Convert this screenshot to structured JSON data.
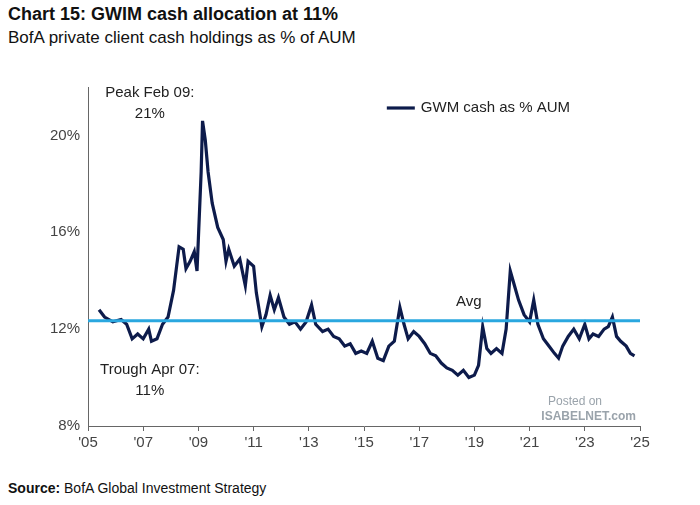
{
  "chart_data": {
    "type": "line",
    "title": "Chart 15: GWIM cash allocation at 11%",
    "subtitle": "BofA private client cash holdings as % of AUM",
    "source": "Source: BofA Global Investment Strategy",
    "x": [
      2005.4,
      2005.6,
      2005.9,
      2006.2,
      2006.4,
      2006.6,
      2006.8,
      2007.0,
      2007.2,
      2007.3,
      2007.5,
      2007.7,
      2007.9,
      2008.1,
      2008.3,
      2008.45,
      2008.55,
      2008.7,
      2008.85,
      2008.95,
      2009.1,
      2009.15,
      2009.25,
      2009.35,
      2009.5,
      2009.7,
      2009.9,
      2010.0,
      2010.1,
      2010.3,
      2010.5,
      2010.7,
      2010.8,
      2011.0,
      2011.1,
      2011.3,
      2011.45,
      2011.6,
      2011.75,
      2011.9,
      2012.1,
      2012.3,
      2012.5,
      2012.7,
      2012.9,
      2013.1,
      2013.25,
      2013.5,
      2013.7,
      2013.9,
      2014.1,
      2014.3,
      2014.5,
      2014.7,
      2014.9,
      2015.1,
      2015.3,
      2015.5,
      2015.7,
      2015.9,
      2016.1,
      2016.3,
      2016.45,
      2016.6,
      2016.8,
      2017.0,
      2017.2,
      2017.4,
      2017.6,
      2017.8,
      2018.0,
      2018.2,
      2018.4,
      2018.6,
      2018.8,
      2019.0,
      2019.15,
      2019.3,
      2019.45,
      2019.6,
      2019.8,
      2020.0,
      2020.15,
      2020.3,
      2020.45,
      2020.6,
      2020.8,
      2021.0,
      2021.15,
      2021.3,
      2021.5,
      2021.7,
      2021.9,
      2022.05,
      2022.2,
      2022.4,
      2022.6,
      2022.8,
      2023.0,
      2023.15,
      2023.3,
      2023.5,
      2023.7,
      2023.85,
      2024.0,
      2024.15,
      2024.3,
      2024.5,
      2024.65,
      2024.8
    ],
    "series": [
      {
        "name": "GWM cash as % AUM",
        "color": "#0d1b4b",
        "values": [
          12.8,
          12.5,
          12.3,
          12.4,
          12.2,
          11.6,
          11.8,
          11.6,
          12.0,
          11.5,
          11.6,
          12.2,
          12.5,
          13.6,
          15.4,
          15.3,
          14.5,
          14.8,
          15.2,
          14.4,
          18.5,
          20.6,
          19.8,
          18.5,
          17.2,
          16.2,
          15.7,
          14.8,
          15.3,
          14.6,
          14.9,
          13.8,
          14.8,
          14.6,
          13.5,
          12.1,
          12.6,
          13.4,
          12.8,
          13.3,
          12.5,
          12.2,
          12.3,
          12.0,
          12.3,
          13.0,
          12.2,
          11.9,
          12.0,
          11.7,
          11.6,
          11.3,
          11.4,
          11.0,
          11.1,
          11.0,
          11.5,
          10.8,
          10.7,
          11.3,
          11.5,
          12.9,
          12.2,
          11.6,
          11.9,
          11.7,
          11.4,
          11.0,
          10.9,
          10.6,
          10.4,
          10.3,
          10.1,
          10.3,
          10.0,
          10.1,
          10.5,
          12.1,
          11.2,
          11.0,
          11.2,
          11.0,
          12.0,
          14.4,
          13.8,
          13.2,
          12.6,
          12.3,
          13.2,
          12.2,
          11.6,
          11.3,
          11.0,
          10.8,
          11.3,
          11.7,
          12.0,
          11.6,
          12.2,
          11.6,
          11.8,
          11.7,
          12.0,
          12.1,
          12.5,
          11.7,
          11.5,
          11.3,
          11.0,
          10.9
        ]
      }
    ],
    "reference_line": {
      "label": "Avg",
      "value": 12.35,
      "color": "#2aa7df"
    },
    "annotations": [
      [
        "Peak Feb 09:",
        "21%"
      ],
      [
        "Trough Apr 07:",
        "11%"
      ]
    ],
    "watermark": [
      "Posted on",
      "ISABELNET.com"
    ],
    "xlim": [
      2005,
      2025
    ],
    "xticks": [
      {
        "value": 2005,
        "label": "'05"
      },
      {
        "value": 2007,
        "label": "'07"
      },
      {
        "value": 2009,
        "label": "'09"
      },
      {
        "value": 2011,
        "label": "'11"
      },
      {
        "value": 2013,
        "label": "'13"
      },
      {
        "value": 2015,
        "label": "'15"
      },
      {
        "value": 2017,
        "label": "'17"
      },
      {
        "value": 2019,
        "label": "'19"
      },
      {
        "value": 2021,
        "label": "'21"
      },
      {
        "value": 2023,
        "label": "'23"
      },
      {
        "value": 2025,
        "label": "'25"
      }
    ],
    "ylim": [
      8,
      22
    ],
    "yticks": [
      {
        "value": 8,
        "label": "8%"
      },
      {
        "value": 12,
        "label": "12%"
      },
      {
        "value": 16,
        "label": "16%"
      },
      {
        "value": 20,
        "label": "20%"
      }
    ],
    "grid": false,
    "legend": "upper right"
  }
}
